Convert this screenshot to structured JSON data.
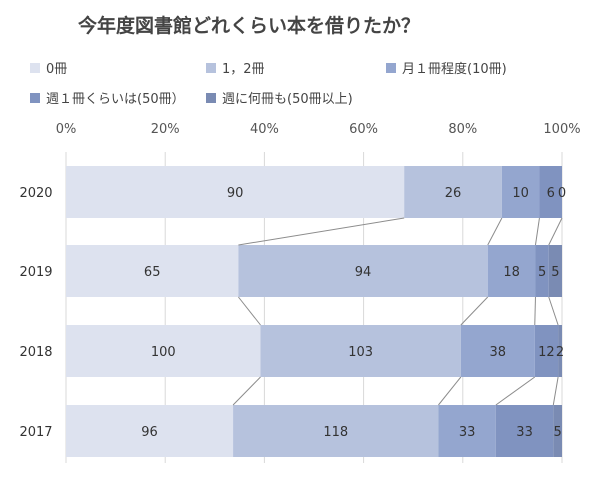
{
  "chart_data": {
    "type": "stacked-bar-100",
    "title": "今年度図書館どれくらい本を借りたか？",
    "categories": [
      "2020",
      "2019",
      "2018",
      "2017"
    ],
    "series": [
      {
        "name": "0冊",
        "color": "#dde2ef",
        "values": [
          90,
          65,
          100,
          96
        ]
      },
      {
        "name": "1，2冊",
        "color": "#b6c2dd",
        "values": [
          26,
          94,
          103,
          118
        ]
      },
      {
        "name": "月１冊程度(10冊)",
        "color": "#94a6cf",
        "values": [
          10,
          18,
          38,
          33
        ]
      },
      {
        "name": "週１冊くらいは(50冊）",
        "color": "#8093c0",
        "values": [
          6,
          5,
          12,
          33
        ]
      },
      {
        "name": "週に何冊も(50冊以上)",
        "color": "#7a8bb3",
        "values": [
          0,
          5,
          2,
          5
        ]
      }
    ],
    "data_labels": [
      [
        "90",
        "26",
        "10",
        "6",
        "0"
      ],
      [
        "65",
        "94",
        "18",
        "5",
        "5"
      ],
      [
        "100",
        "103",
        "38",
        "12",
        "2"
      ],
      [
        "96",
        "118",
        "33",
        "33",
        "5"
      ]
    ],
    "xticks": [
      "0%",
      "20%",
      "40%",
      "60%",
      "80%",
      "100%"
    ],
    "xlim": [
      0,
      100
    ],
    "legend_position": "top",
    "series_lines": true
  }
}
